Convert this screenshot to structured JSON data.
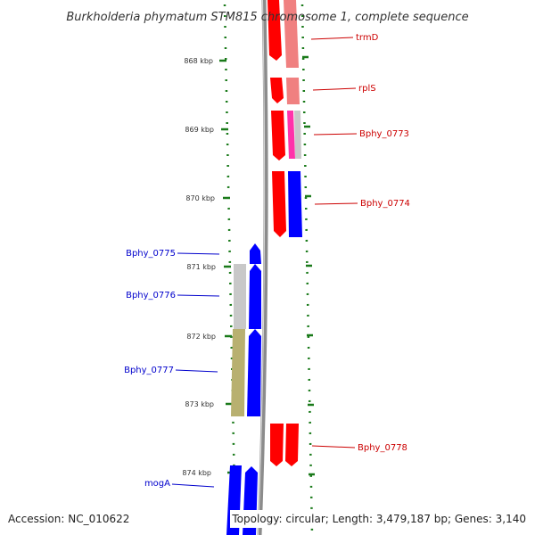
{
  "title": "Burkholderia phymatum STM815 chromosome 1, complete sequence",
  "accession": "Accession: NC_010622",
  "topology": "Topology: circular; Length: 3,479,187 bp; Genes: 3,140",
  "colors": {
    "forward": "#ff0000",
    "forward_light": "#f08080",
    "reverse": "#0000ff",
    "pink": "#ff33aa",
    "grey": "#c8c8c8",
    "olive": "#b8b070",
    "tick": "#1a7a1a",
    "backbone": "#888888"
  },
  "ticks": [
    {
      "label": "868 kbp"
    },
    {
      "label": "869 kbp"
    },
    {
      "label": "870 kbp"
    },
    {
      "label": "871 kbp"
    },
    {
      "label": "872 kbp"
    },
    {
      "label": "873 kbp"
    },
    {
      "label": "874 kbp"
    }
  ],
  "genes_right": [
    {
      "name": "trmD"
    },
    {
      "name": "rplS"
    },
    {
      "name": "Bphy_0773"
    },
    {
      "name": "Bphy_0774"
    },
    {
      "name": "Bphy_0778"
    }
  ],
  "genes_left": [
    {
      "name": "Bphy_0775"
    },
    {
      "name": "Bphy_0776"
    },
    {
      "name": "Bphy_0777"
    },
    {
      "name": "mogA"
    }
  ]
}
